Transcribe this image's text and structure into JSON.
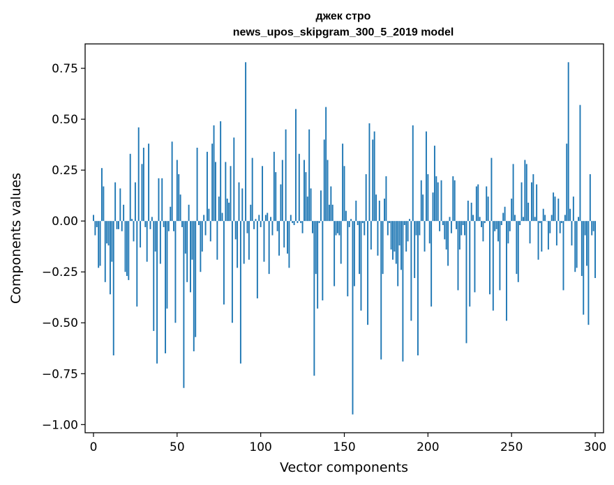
{
  "chart_data": {
    "type": "bar",
    "title": "джек стро",
    "subtitle": "news_upos_skipgram_300_5_2019 model",
    "xlabel": "Vector components",
    "ylabel": "Components values",
    "xlim": [
      -5,
      305
    ],
    "ylim": [
      -1.04,
      0.87
    ],
    "xticks": [
      0,
      50,
      100,
      150,
      200,
      250,
      300
    ],
    "yticks": [
      -1.0,
      -0.75,
      -0.5,
      -0.25,
      0.0,
      0.25,
      0.5,
      0.75
    ],
    "ytick_labels": [
      "−1.00",
      "−0.75",
      "−0.50",
      "−0.25",
      "0.00",
      "0.25",
      "0.50",
      "0.75"
    ],
    "bar_color": "#1f77b4",
    "grid": false,
    "values": [
      0.03,
      -0.07,
      -0.03,
      -0.23,
      -0.22,
      0.26,
      0.17,
      -0.3,
      -0.11,
      -0.12,
      -0.36,
      -0.2,
      -0.66,
      0.19,
      -0.04,
      -0.04,
      0.16,
      -0.05,
      0.08,
      -0.25,
      -0.27,
      -0.29,
      0.33,
      0.01,
      -0.1,
      0.19,
      -0.42,
      0.46,
      -0.13,
      0.28,
      0.36,
      -0.03,
      -0.2,
      0.38,
      -0.04,
      0.02,
      -0.54,
      -0.15,
      -0.7,
      0.21,
      -0.21,
      0.21,
      -0.03,
      -0.65,
      -0.43,
      -0.05,
      0.07,
      0.39,
      -0.05,
      -0.5,
      0.3,
      0.23,
      0.13,
      -0.03,
      -0.82,
      -0.16,
      -0.3,
      0.08,
      -0.35,
      -0.19,
      -0.64,
      -0.57,
      0.36,
      -0.02,
      -0.25,
      -0.15,
      0.03,
      -0.07,
      0.34,
      0.06,
      -0.1,
      0.38,
      0.47,
      0.29,
      -0.19,
      0.12,
      0.49,
      0.04,
      -0.41,
      0.29,
      0.11,
      0.09,
      0.27,
      -0.5,
      0.41,
      -0.09,
      -0.23,
      0.19,
      -0.7,
      0.16,
      -0.21,
      0.78,
      -0.06,
      -0.19,
      0.08,
      0.31,
      -0.04,
      0.01,
      -0.38,
      0.03,
      -0.03,
      0.27,
      -0.2,
      0.03,
      0.04,
      -0.26,
      0.02,
      -0.07,
      0.34,
      0.24,
      -0.05,
      -0.17,
      0.18,
      0.3,
      -0.13,
      0.45,
      -0.16,
      -0.23,
      0.03,
      -0.01,
      -0.02,
      0.55,
      -0.01,
      0.33,
      -0.01,
      -0.06,
      0.3,
      0.24,
      0.12,
      0.45,
      0.16,
      -0.06,
      -0.76,
      -0.26,
      -0.43,
      -0.01,
      0.15,
      -0.39,
      0.4,
      0.56,
      0.3,
      0.08,
      0.17,
      0.08,
      -0.32,
      -0.07,
      -0.06,
      -0.07,
      -0.21,
      0.38,
      0.27,
      0.05,
      -0.37,
      -0.03,
      0.01,
      -0.95,
      -0.32,
      0.1,
      -0.02,
      -0.26,
      -0.44,
      -0.01,
      -0.07,
      0.23,
      -0.51,
      0.48,
      -0.14,
      0.4,
      0.44,
      0.13,
      -0.17,
      0.1,
      -0.68,
      -0.26,
      0.11,
      0.22,
      -0.07,
      -0.01,
      -0.14,
      -0.19,
      -0.15,
      -0.21,
      -0.32,
      -0.12,
      -0.24,
      -0.69,
      -0.02,
      -0.15,
      -0.1,
      0.01,
      -0.49,
      0.47,
      -0.28,
      -0.07,
      -0.66,
      -0.07,
      0.2,
      0.13,
      -0.15,
      0.44,
      0.23,
      -0.11,
      -0.42,
      0.14,
      0.37,
      0.22,
      0.19,
      -0.05,
      0.2,
      -0.02,
      -0.09,
      -0.14,
      -0.22,
      0.02,
      -0.06,
      0.22,
      0.2,
      -0.04,
      -0.34,
      -0.14,
      -0.07,
      -0.02,
      -0.07,
      -0.6,
      0.1,
      -0.42,
      0.09,
      0.03,
      -0.35,
      0.17,
      0.18,
      0.02,
      -0.03,
      -0.1,
      -0.01,
      0.17,
      0.12,
      -0.36,
      0.31,
      -0.44,
      -0.05,
      -0.04,
      -0.1,
      -0.34,
      -0.02,
      0.04,
      0.07,
      -0.49,
      -0.11,
      -0.05,
      0.11,
      0.28,
      0.03,
      -0.26,
      -0.3,
      -0.02,
      0.19,
      0.02,
      0.3,
      0.28,
      0.09,
      -0.11,
      0.19,
      0.23,
      0.02,
      0.18,
      -0.19,
      -0.01,
      -0.15,
      0.06,
      0.03,
      0.0,
      -0.14,
      -0.06,
      0.03,
      0.14,
      0.12,
      -0.12,
      0.11,
      -0.06,
      -0.01,
      -0.34,
      0.03,
      0.38,
      0.78,
      0.06,
      -0.12,
      0.12,
      -0.25,
      -0.23,
      0.02,
      0.57,
      -0.27,
      -0.46,
      -0.07,
      -0.22,
      -0.51,
      0.23,
      -0.07,
      -0.05,
      -0.28
    ]
  }
}
